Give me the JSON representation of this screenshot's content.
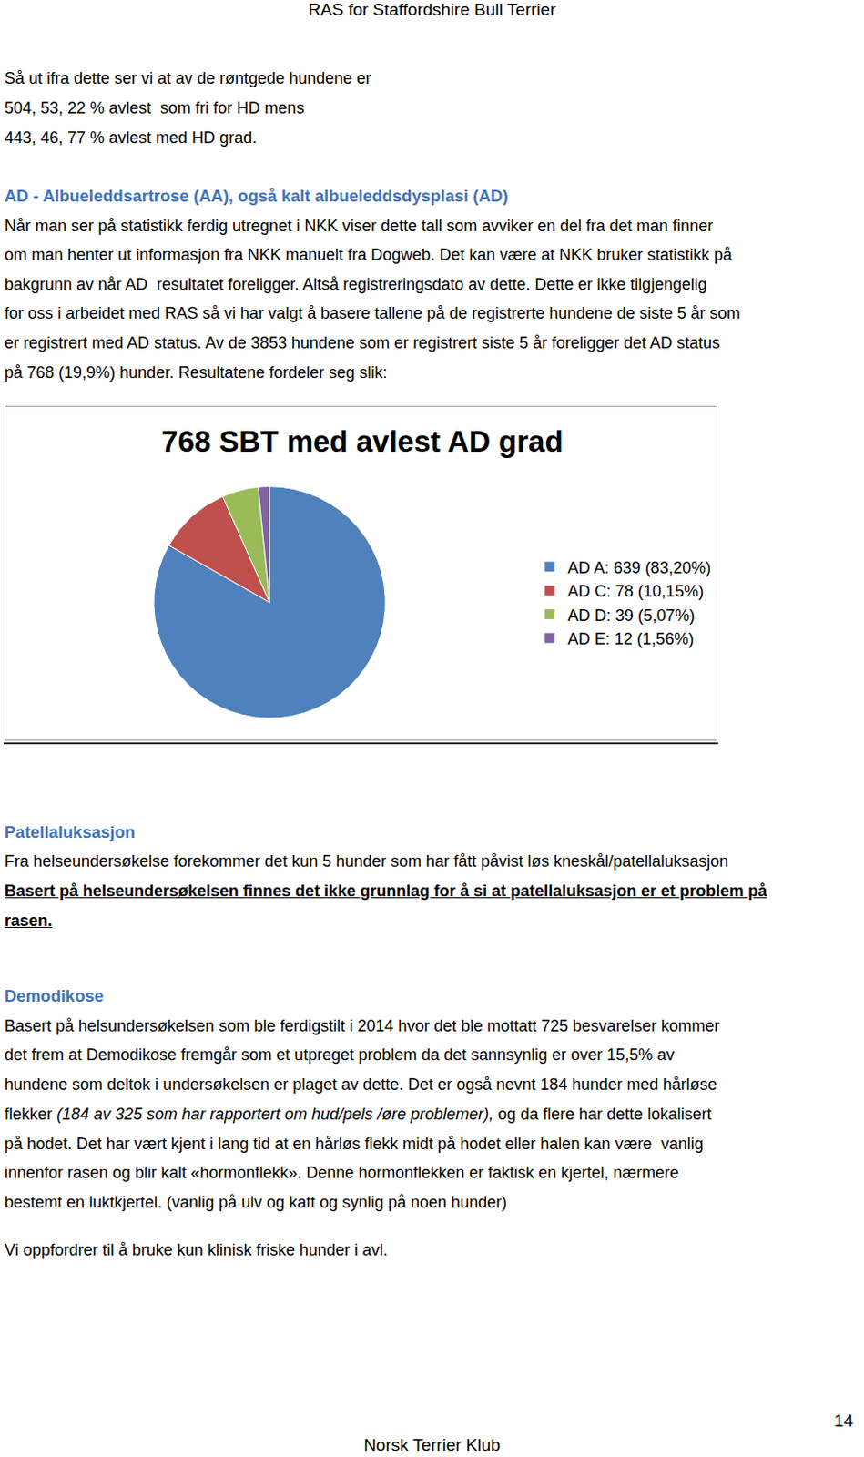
{
  "header": "RAS for Staffordshire Bull Terrier",
  "sections": [
    {
      "lines": [
        "Så ut ifra dette ser vi at av de røntgede hundene er",
        "504, 53, 22 % avlest  som fri for HD mens",
        "443, 46, 77 % avlest med HD grad."
      ]
    },
    {
      "heading": "AD - Albueleddsartrose (AA), også kalt albueleddsdysplasi (AD)",
      "lines": [
        "Når man ser på statistikk ferdig utregnet i NKK viser dette tall som avviker en del fra det man finner",
        "om man henter ut informasjon fra NKK manuelt fra Dogweb. Det kan være at NKK bruker statistikk på",
        "bakgrunn av når AD  resultatet foreligger. Altså registreringsdato av dette. Dette er ikke tilgjengelig",
        "for oss i arbeidet med RAS så vi har valgt å basere tallene på de registrerte hundene de siste 5 år som",
        "er registrert med AD status. Av de 3853 hundene som er registrert siste 5 år foreligger det AD status",
        "på 768 (19,9%) hunder. Resultatene fordeler seg slik:"
      ]
    },
    {
      "heading": "Patellaluksasjon",
      "lines": [
        "Fra helseundersøkelse forekommer det kun 5 hunder som har fått påvist løs kneskål/patellaluksasjon",
        [
          {
            "strong": "Basert på helseundersøkelsen finnes det ikke grunnlag for å si at patellaluksasjon er et problem på"
          }
        ],
        [
          {
            "strong": "rasen."
          }
        ]
      ]
    },
    {
      "heading": "Demodikose",
      "lines": [
        "Basert på helsundersøkelsen som ble ferdigstilt i 2014 hvor det ble mottatt 725 besvarelser kommer",
        "det frem at Demodikose fremgår som et utpreget problem da det sannsynlig er over 15,5% av",
        "hundene som deltok i undersøkelsen er plaget av dette. Det er også nevnt 184 hunder med hårløse",
        [
          "flekker ",
          {
            "italic": "(184 av 325 som har rapportert om hud/pels /øre problemer),"
          },
          " og da flere har dette lokalisert"
        ],
        "på hodet. Det har vært kjent i lang tid at en hårløs flekk midt på hodet eller halen kan være  vanlig",
        "innenfor rasen og blir kalt «hormonflekk». Denne hormonflekken er faktisk en kjertel, nærmere",
        "bestemt en luktkjertel. (vanlig på ulv og katt og synlig på noen hunder)"
      ]
    },
    {
      "lines": [
        "Vi oppfordrer til å bruke kun klinisk friske hunder i avl."
      ]
    }
  ],
  "chart_data": {
    "type": "pie",
    "title": "768 SBT med avlest AD grad",
    "categories": [
      "AD A: 639 (83,20%)",
      "AD C: 78 (10,15%)",
      "AD D: 39 (5,07%)",
      "AD E: 12 (1,56%)"
    ],
    "values": [
      639,
      78,
      39,
      12
    ],
    "colors": [
      "#4f81bd",
      "#c0504d",
      "#9bbb59",
      "#8064a2"
    ],
    "legend": "right"
  },
  "page_number": "14",
  "footer": "Norsk Terrier Klub"
}
